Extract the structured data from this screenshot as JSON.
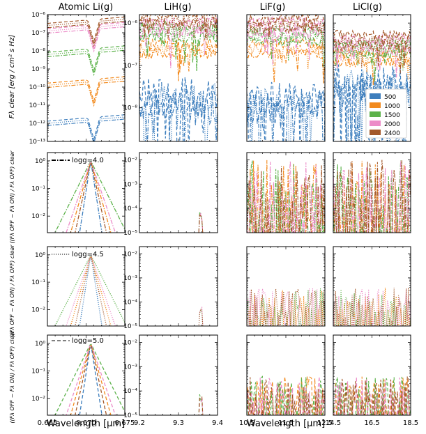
{
  "chart_data": {
    "type": "line",
    "grid": "4x4 panels",
    "columns": [
      {
        "title": "Atomic Li(g)",
        "xlim": [
          0.665,
          0.675
        ],
        "ticks": [
          0.665,
          0.67,
          0.675
        ],
        "tick_labels": [
          "0.665",
          "0.670",
          "0.675"
        ]
      },
      {
        "title": "LiH(g)",
        "xlim": [
          9.2,
          9.4
        ],
        "ticks": [
          9.2,
          9.3,
          9.4
        ],
        "tick_labels": [
          "9.2",
          "9.3",
          "9.4"
        ]
      },
      {
        "title": "LiF(g)",
        "xlim": [
          10.5,
          12.5
        ],
        "ticks": [
          10.5,
          11.5,
          12.5
        ],
        "tick_labels": [
          "10.5",
          "11.5",
          "12.5"
        ]
      },
      {
        "title": "LiCl(g)",
        "xlim": [
          14.5,
          18.5
        ],
        "ticks": [
          14.5,
          16.5,
          18.5
        ],
        "tick_labels": [
          "14.5",
          "16.5",
          "18.5"
        ]
      }
    ],
    "xlabel_left": "Wavelength [μm]",
    "xlabel_right": "Wavelength [μm]",
    "rows": [
      {
        "ylabel": "Fλ clear [erg / cm² s Hz]",
        "annotation": "",
        "linestyles": [
          "dashdot",
          "dotted",
          "dashed"
        ]
      },
      {
        "ylabel": "((Fλ OFF − Fλ ON) / Fλ OFF) clear",
        "annotation": "logg=4.0",
        "linestyle": "dashdot"
      },
      {
        "ylabel": "((Fλ OFF − Fλ ON) / Fλ OFF) clear",
        "annotation": "logg=4.5",
        "linestyle": "dotted"
      },
      {
        "ylabel": "((Fλ OFF − Fλ ON) / Fλ OFF) clear",
        "annotation": "logg=5.0",
        "linestyle": "dashed"
      }
    ],
    "row0_col0_yticks": [
      "10⁻¹³",
      "10⁻¹²",
      "10⁻¹¹",
      "10⁻¹⁰",
      "10⁻⁹",
      "10⁻⁸",
      "10⁻⁷",
      "10⁻⁶"
    ],
    "row0_col1_yticks": [
      "10⁻⁸",
      "10⁻⁷",
      "10⁻⁶"
    ],
    "ratio_col0_yticks": [
      "10⁻²",
      "10⁻¹",
      "10⁰"
    ],
    "ratio_col1_yticks": [
      "10⁻⁵",
      "10⁻⁴",
      "10⁻³",
      "10⁻²"
    ],
    "legend": {
      "placement": "lower-right of LiCl flux panel",
      "entries": [
        "500",
        "1000",
        "1500",
        "2000",
        "2400"
      ]
    },
    "colors": {
      "500": "#3d7ebd",
      "1000": "#f28a1e",
      "1500": "#5cb24a",
      "2000": "#ec8cc8",
      "2400": "#a3582a"
    },
    "series_log10_levels": {
      "atomic_flux": {
        "500": -12.0,
        "1000": -9.9,
        "1500": -8.2,
        "2000": -6.9,
        "2400": -6.6
      },
      "lih_flux": {
        "500": -7.8,
        "1000": -6.6,
        "1500": -6.2,
        "2000": -6.1,
        "2400": -5.9
      },
      "lif_flux": {
        "500": -7.9,
        "1000": -6.6,
        "1500": -6.3,
        "2000": -6.1,
        "2400": -6.0
      },
      "licl_flux": {
        "500": -7.5,
        "1000": -6.8,
        "1500": -6.6,
        "2000": -6.5,
        "2400": -6.4
      },
      "atomic_ratio_peak": 0.0
    }
  }
}
